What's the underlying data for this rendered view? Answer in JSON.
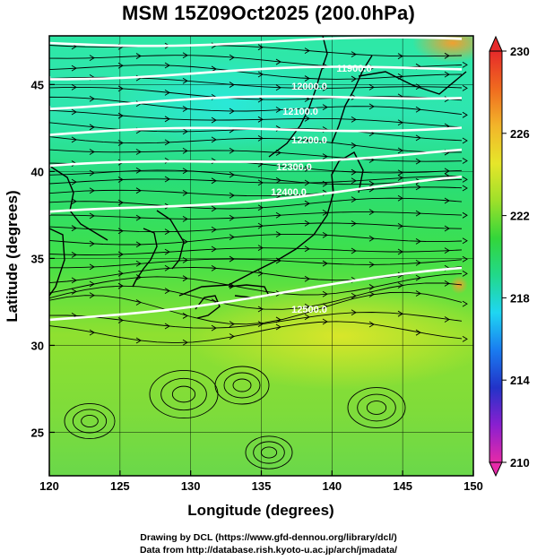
{
  "title": "MSM 15Z09Oct2025 (200.0hPa)",
  "xaxis": {
    "label": "Longitude (degrees)",
    "ticks": [
      "120",
      "125",
      "130",
      "135",
      "140",
      "145",
      "150"
    ],
    "range": [
      120,
      150
    ]
  },
  "yaxis": {
    "label": "Latitude  (degrees)",
    "ticks": [
      "25",
      "30",
      "35",
      "40",
      "45"
    ],
    "range": [
      22.5,
      47.8
    ]
  },
  "colorbar": {
    "min": 210,
    "max": 230,
    "ticks": [
      "230",
      "226",
      "222",
      "218",
      "214",
      "210"
    ],
    "colors": [
      "#e62aa8",
      "#8a1fd0",
      "#2233c8",
      "#1a7cf0",
      "#1fd6f2",
      "#22d88a",
      "#33d63a",
      "#9ee02a",
      "#e6e62a",
      "#f2b52a",
      "#f06a1f",
      "#e62a2a"
    ]
  },
  "contours": {
    "color": "#ffffff",
    "labels": [
      "11900.0",
      "12000.0",
      "12100.0",
      "12200.0",
      "12300.0",
      "12400.0",
      "12500.0"
    ]
  },
  "credits": [
    "Drawing by DCL (https://www.gfd-dennou.org/library/dcl/)",
    "Data from http://database.rish.kyoto-u.ac.jp/arch/jmadata/"
  ]
}
